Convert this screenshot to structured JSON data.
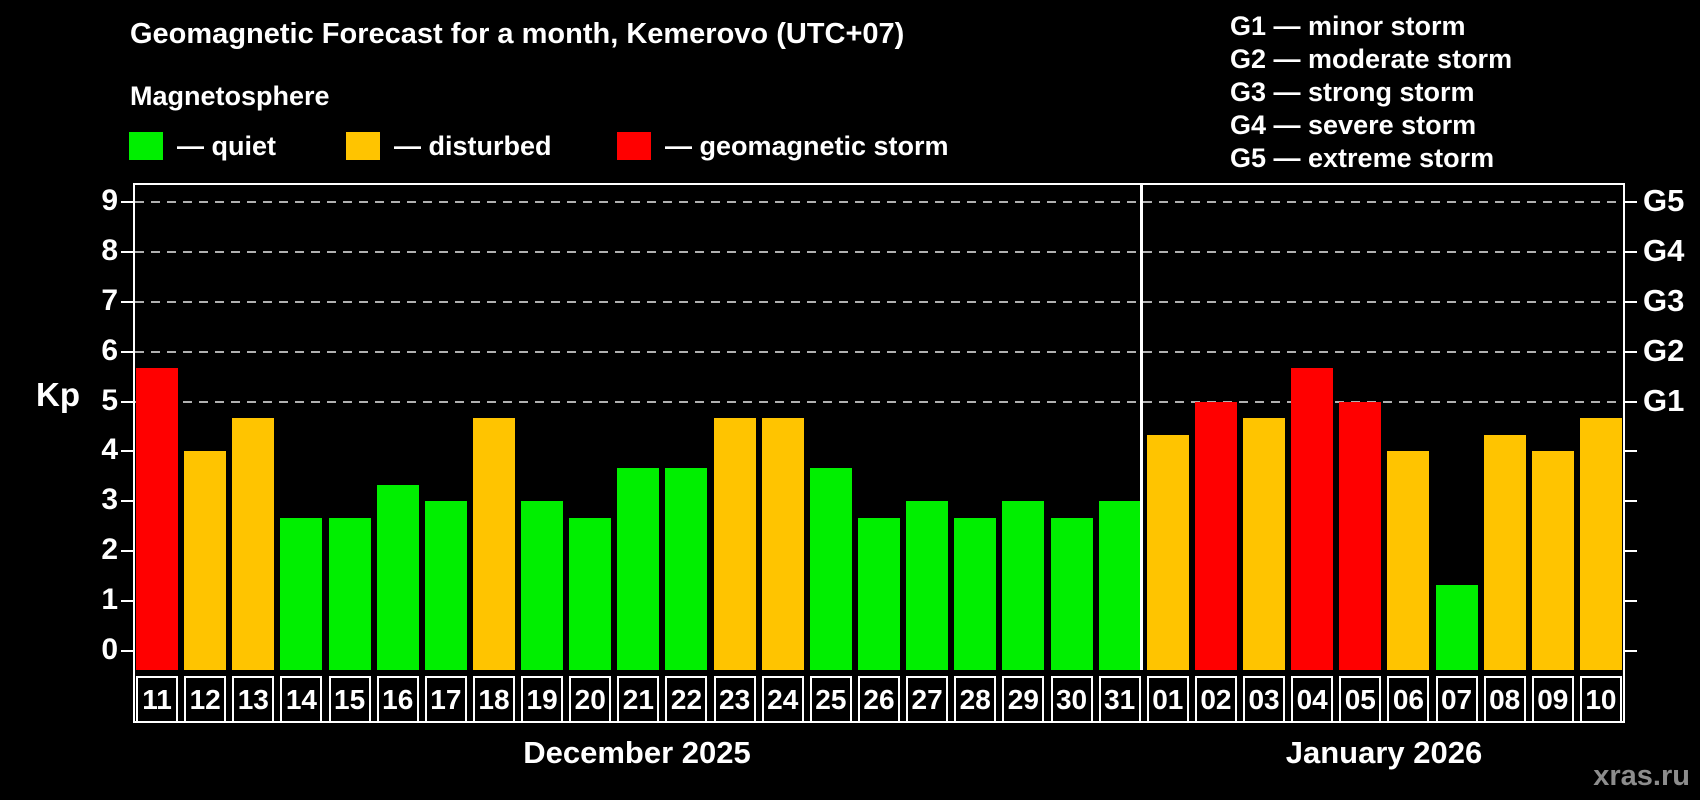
{
  "header": {
    "title": "Geomagnetic Forecast for a month, Kemerovo (UTC+07)",
    "subtitle": "Magnetosphere"
  },
  "legend": {
    "items": [
      {
        "key": "quiet",
        "label": "— quiet",
        "color": "#00ef00"
      },
      {
        "key": "disturbed",
        "label": "— disturbed",
        "color": "#ffc400"
      },
      {
        "key": "storm",
        "label": "— geomagnetic storm",
        "color": "#ff0000"
      }
    ]
  },
  "g_scale_legend": {
    "items": [
      "G1 — minor storm",
      "G2 — moderate storm",
      "G3 — strong storm",
      "G4 — severe storm",
      "G5 — extreme storm"
    ]
  },
  "watermark": "xras.ru",
  "chart_data": {
    "type": "bar",
    "title": "Geomagnetic Forecast for a month, Kemerovo (UTC+07)",
    "ylabel": "Kp",
    "ylim": [
      0,
      9
    ],
    "y_ticks": [
      0,
      1,
      2,
      3,
      4,
      5,
      6,
      7,
      8,
      9
    ],
    "grid": {
      "dashed_levels": [
        5,
        6,
        7,
        8,
        9
      ]
    },
    "right_axis_labels": [
      {
        "kp": 5,
        "label": "G1"
      },
      {
        "kp": 6,
        "label": "G2"
      },
      {
        "kp": 7,
        "label": "G3"
      },
      {
        "kp": 8,
        "label": "G4"
      },
      {
        "kp": 9,
        "label": "G5"
      }
    ],
    "colors": {
      "quiet": "#00ef00",
      "disturbed": "#ffc400",
      "storm": "#ff0000"
    },
    "months": [
      {
        "label": "December 2025",
        "days": [
          {
            "day": "11",
            "kp": 5.67,
            "status": "storm"
          },
          {
            "day": "12",
            "kp": 4.0,
            "status": "disturbed"
          },
          {
            "day": "13",
            "kp": 4.67,
            "status": "disturbed"
          },
          {
            "day": "14",
            "kp": 2.67,
            "status": "quiet"
          },
          {
            "day": "15",
            "kp": 2.67,
            "status": "quiet"
          },
          {
            "day": "16",
            "kp": 3.33,
            "status": "quiet"
          },
          {
            "day": "17",
            "kp": 3.0,
            "status": "quiet"
          },
          {
            "day": "18",
            "kp": 4.67,
            "status": "disturbed"
          },
          {
            "day": "19",
            "kp": 3.0,
            "status": "quiet"
          },
          {
            "day": "20",
            "kp": 2.67,
            "status": "quiet"
          },
          {
            "day": "21",
            "kp": 3.67,
            "status": "quiet"
          },
          {
            "day": "22",
            "kp": 3.67,
            "status": "quiet"
          },
          {
            "day": "23",
            "kp": 4.67,
            "status": "disturbed"
          },
          {
            "day": "24",
            "kp": 4.67,
            "status": "disturbed"
          },
          {
            "day": "25",
            "kp": 3.67,
            "status": "quiet"
          },
          {
            "day": "26",
            "kp": 2.67,
            "status": "quiet"
          },
          {
            "day": "27",
            "kp": 3.0,
            "status": "quiet"
          },
          {
            "day": "28",
            "kp": 2.67,
            "status": "quiet"
          },
          {
            "day": "29",
            "kp": 3.0,
            "status": "quiet"
          },
          {
            "day": "30",
            "kp": 2.67,
            "status": "quiet"
          },
          {
            "day": "31",
            "kp": 3.0,
            "status": "quiet"
          }
        ]
      },
      {
        "label": "January 2026",
        "days": [
          {
            "day": "01",
            "kp": 4.33,
            "status": "disturbed"
          },
          {
            "day": "02",
            "kp": 5.0,
            "status": "storm"
          },
          {
            "day": "03",
            "kp": 4.67,
            "status": "disturbed"
          },
          {
            "day": "04",
            "kp": 5.67,
            "status": "storm"
          },
          {
            "day": "05",
            "kp": 5.0,
            "status": "storm"
          },
          {
            "day": "06",
            "kp": 4.0,
            "status": "disturbed"
          },
          {
            "day": "07",
            "kp": 1.33,
            "status": "quiet"
          },
          {
            "day": "08",
            "kp": 4.33,
            "status": "disturbed"
          },
          {
            "day": "09",
            "kp": 4.0,
            "status": "disturbed"
          },
          {
            "day": "10",
            "kp": 4.67,
            "status": "disturbed"
          }
        ]
      }
    ]
  }
}
